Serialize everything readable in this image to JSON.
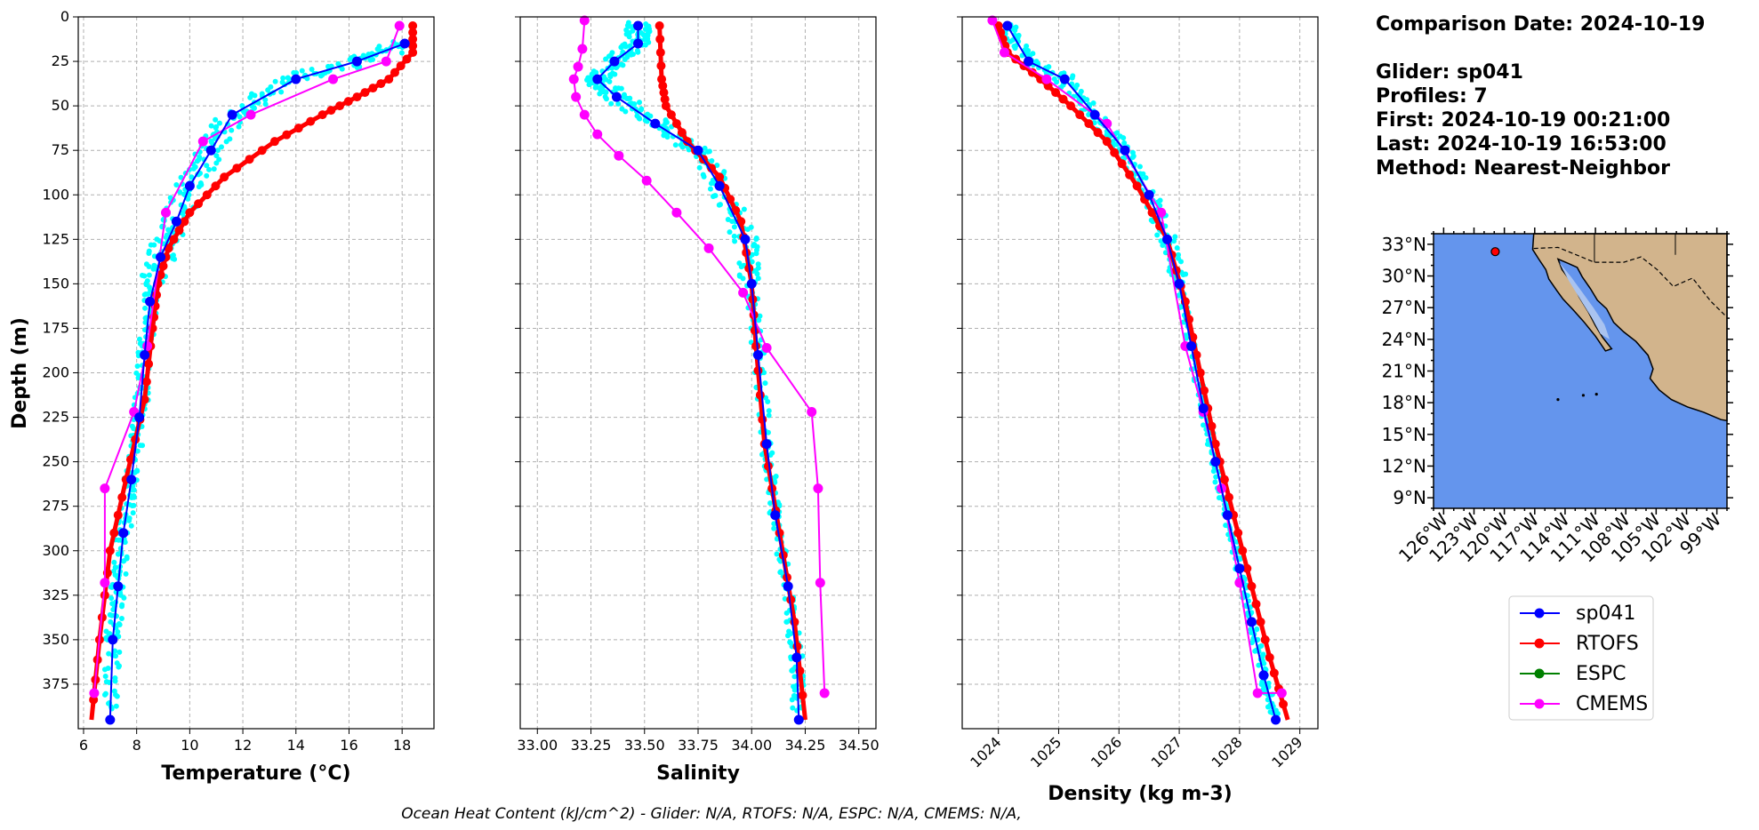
{
  "info": {
    "date_line": "Comparison Date: 2024-10-19",
    "glider_line": "Glider: sp041",
    "profiles_line": "Profiles: 7",
    "first_line": "First: 2024-10-19 00:21:00",
    "last_line": "Last: 2024-10-19 16:53:00",
    "method_line": "Method: Nearest-Neighbor"
  },
  "footer": "Ocean Heat Content (kJ/cm^2) - Glider: N/A,  RTOFS: N/A,  ESPC: N/A,  CMEMS: N/A,",
  "colors": {
    "glider": "#0000ff",
    "glider_raw": "#00ffff",
    "rtofs": "#ff0000",
    "espc": "#008000",
    "cmems": "#ff00ff",
    "ocean": "#6495ed",
    "land": "#d2b48c",
    "grid": "#b0b0b0"
  },
  "legend": [
    "sp041",
    "RTOFS",
    "ESPC",
    "CMEMS"
  ],
  "chart_data": [
    {
      "type": "line",
      "xlabel": "Temperature (°C)",
      "ylabel": "Depth (m)",
      "xlim": [
        5.8,
        19.2
      ],
      "ylim": [
        400,
        0
      ],
      "xticks": [
        6,
        8,
        10,
        12,
        14,
        16,
        18
      ],
      "yticks": [
        0,
        25,
        50,
        75,
        100,
        125,
        150,
        175,
        200,
        225,
        250,
        275,
        300,
        325,
        350,
        375
      ],
      "grid": true,
      "series": [
        {
          "name": "sp041",
          "x": [
            18.1,
            16.3,
            14.0,
            11.6,
            10.8,
            10.0,
            9.5,
            8.9,
            8.5,
            8.3,
            8.1,
            7.8,
            7.5,
            7.3,
            7.1,
            7.0
          ],
          "y": [
            15,
            25,
            35,
            55,
            75,
            95,
            115,
            135,
            160,
            190,
            225,
            260,
            290,
            320,
            350,
            395
          ]
        },
        {
          "name": "RTOFS",
          "x": [
            18.4,
            18.4,
            17.5,
            16.3,
            15.0,
            13.2,
            11.3,
            10.0,
            9.2,
            8.8,
            8.6,
            8.3,
            7.6,
            7.0,
            6.6,
            6.3
          ],
          "y": [
            5,
            20,
            35,
            45,
            55,
            70,
            90,
            110,
            130,
            150,
            175,
            215,
            260,
            300,
            350,
            395
          ]
        },
        {
          "name": "CMEMS",
          "x": [
            17.9,
            17.4,
            15.4,
            12.3,
            10.5,
            9.1,
            8.4,
            7.9,
            6.8,
            6.8,
            6.4
          ],
          "y": [
            5,
            25,
            35,
            55,
            70,
            110,
            185,
            222,
            265,
            318,
            380
          ]
        }
      ]
    },
    {
      "type": "line",
      "xlabel": "Salinity",
      "xlim": [
        32.92,
        34.58
      ],
      "ylim": [
        400,
        0
      ],
      "xticks": [
        33.0,
        33.25,
        33.5,
        33.75,
        34.0,
        34.25,
        34.5
      ],
      "grid": true,
      "series": [
        {
          "name": "sp041",
          "x": [
            33.47,
            33.47,
            33.36,
            33.28,
            33.37,
            33.55,
            33.75,
            33.85,
            33.97,
            34.0,
            34.03,
            34.07,
            34.11,
            34.17,
            34.21,
            34.22
          ],
          "y": [
            5,
            15,
            25,
            35,
            45,
            60,
            75,
            95,
            125,
            150,
            190,
            240,
            280,
            320,
            360,
            395
          ]
        },
        {
          "name": "RTOFS",
          "x": [
            33.57,
            33.58,
            33.6,
            33.7,
            33.85,
            33.95,
            34.0,
            34.02,
            34.06,
            34.13,
            34.2,
            34.25
          ],
          "y": [
            5,
            35,
            50,
            70,
            90,
            115,
            150,
            185,
            240,
            290,
            340,
            395
          ]
        },
        {
          "name": "CMEMS",
          "x": [
            33.22,
            33.21,
            33.19,
            33.17,
            33.18,
            33.22,
            33.28,
            33.38,
            33.51,
            33.65,
            33.8,
            33.96,
            34.07,
            34.28,
            34.31,
            34.32,
            34.34
          ],
          "y": [
            2,
            18,
            28,
            35,
            45,
            55,
            66,
            78,
            92,
            110,
            130,
            155,
            186,
            222,
            265,
            318,
            380
          ]
        }
      ]
    },
    {
      "type": "line",
      "xlabel": "Density (kg m-3)",
      "xlim": [
        1023.4,
        1029.3
      ],
      "ylim": [
        400,
        0
      ],
      "xticks": [
        1024,
        1025,
        1026,
        1027,
        1028,
        1029
      ],
      "grid": true,
      "series": [
        {
          "name": "sp041",
          "x": [
            1024.15,
            1024.5,
            1025.1,
            1025.6,
            1026.1,
            1026.5,
            1026.8,
            1027.0,
            1027.2,
            1027.4,
            1027.6,
            1027.8,
            1028.0,
            1028.2,
            1028.4,
            1028.6
          ],
          "y": [
            5,
            25,
            35,
            55,
            75,
            100,
            125,
            150,
            185,
            220,
            250,
            280,
            310,
            340,
            370,
            395
          ]
        },
        {
          "name": "RTOFS",
          "x": [
            1024.0,
            1024.15,
            1024.7,
            1025.2,
            1025.8,
            1026.3,
            1026.8,
            1027.1,
            1027.35,
            1027.6,
            1027.9,
            1028.2,
            1028.5,
            1028.8
          ],
          "y": [
            5,
            20,
            35,
            50,
            70,
            95,
            125,
            160,
            200,
            240,
            280,
            320,
            360,
            395
          ]
        },
        {
          "name": "CMEMS",
          "x": [
            1023.9,
            1024.1,
            1024.8,
            1025.8,
            1026.7,
            1027.1,
            1027.4,
            1027.7,
            1028.0,
            1028.3,
            1028.7
          ],
          "y": [
            2,
            20,
            35,
            60,
            110,
            185,
            222,
            265,
            318,
            380,
            380
          ]
        }
      ]
    }
  ],
  "map": {
    "lat_ticks": [
      "33°N",
      "30°N",
      "27°N",
      "24°N",
      "21°N",
      "18°N",
      "15°N",
      "12°N",
      "9°N"
    ],
    "lon_ticks": [
      "126°W",
      "123°W",
      "120°W",
      "117°W",
      "114°W",
      "111°W",
      "108°W",
      "105°W",
      "102°W",
      "99°W"
    ],
    "lon_range": [
      -127,
      -98
    ],
    "lat_range": [
      8,
      34
    ],
    "glider_position": {
      "lon": -120.9,
      "lat": 32.3
    }
  }
}
